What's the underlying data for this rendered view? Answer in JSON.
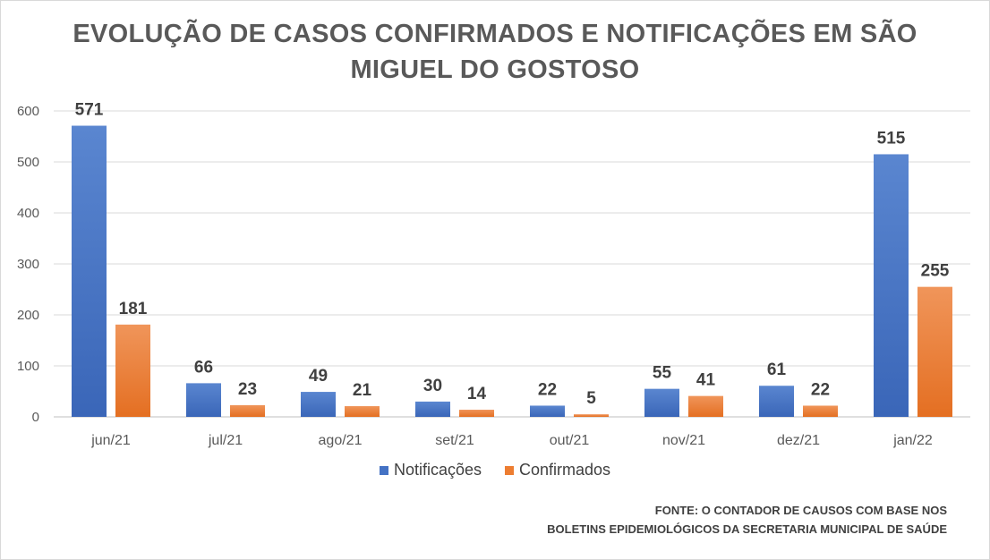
{
  "chart_data": {
    "type": "bar",
    "title_lines": [
      "EVOLUÇÃO DE CASOS CONFIRMADOS E NOTIFICAÇÕES EM SÃO",
      "MIGUEL DO GOSTOSO"
    ],
    "categories": [
      "jun/21",
      "jul/21",
      "ago/21",
      "set/21",
      "out/21",
      "nov/21",
      "dez/21",
      "jan/22"
    ],
    "series": [
      {
        "name": "Notificações",
        "color": "#4472C4",
        "values": [
          571,
          66,
          49,
          30,
          22,
          55,
          61,
          515
        ]
      },
      {
        "name": "Confirmados",
        "color": "#ED7D31",
        "values": [
          181,
          23,
          21,
          14,
          5,
          41,
          22,
          255
        ]
      }
    ],
    "ylim": [
      0,
      600
    ],
    "yticks": [
      "0",
      "100",
      "200",
      "300",
      "400",
      "500",
      "600"
    ],
    "grid": true,
    "legend_position": "bottom"
  },
  "source_lines": [
    "FONTE: O CONTADOR DE CAUSOS COM BASE NOS",
    "BOLETINS EPIDEMIOLÓGICOS DA SECRETARIA MUNICIPAL DE SAÚDE"
  ]
}
